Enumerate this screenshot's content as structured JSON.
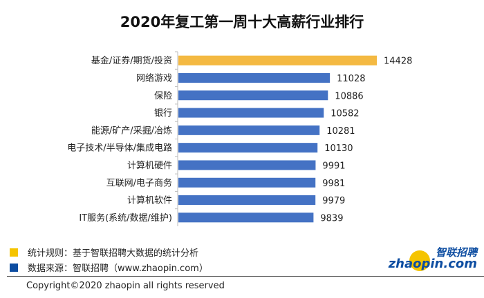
{
  "chart_data": {
    "type": "bar",
    "orientation": "horizontal",
    "title": "2020年复工第一周十大高薪行业排行",
    "categories": [
      "基金/证券/期货/投资",
      "网络游戏",
      "保险",
      "银行",
      "能源/矿产/采掘/冶炼",
      "电子技术/半导体/集成电路",
      "计算机硬件",
      "互联网/电子商务",
      "计算机软件",
      "IT服务(系统/数据/维护)"
    ],
    "values": [
      14428,
      11028,
      10886,
      10582,
      10281,
      10130,
      9991,
      9981,
      9979,
      9839
    ],
    "bar_colors": [
      "#F4B942",
      "#4472C4",
      "#4472C4",
      "#4472C4",
      "#4472C4",
      "#4472C4",
      "#4472C4",
      "#4472C4",
      "#4472C4",
      "#4472C4"
    ],
    "xlim": [
      0,
      14428
    ],
    "grid": false,
    "data_labels": true
  },
  "notes": [
    {
      "text": "统计规则：基于智联招聘大数据的统计分析",
      "color": "#F5C400"
    },
    {
      "text": "数据来源：智联招聘（www.zhaopin.com）",
      "color": "#0D4DA1"
    }
  ],
  "logo": {
    "cn": "智联招聘",
    "en": "zhaopin.com"
  },
  "copyright": "Copyright©2020 zhaopin all rights reserved"
}
